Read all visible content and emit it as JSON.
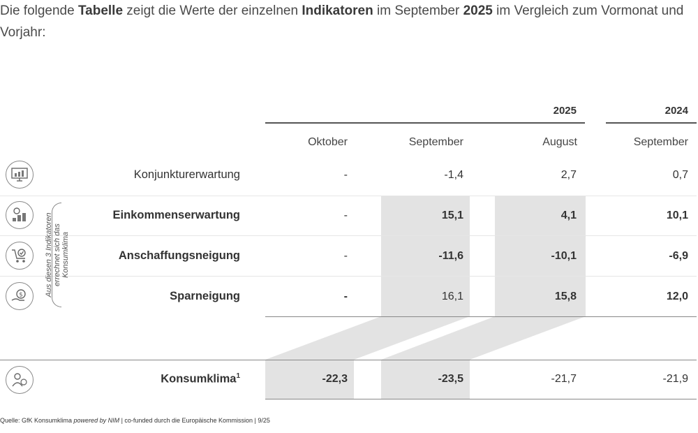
{
  "intro": {
    "part1": "Die folgende ",
    "bold1": "Tabelle",
    "part2": " zeigt die Werte der einzelnen ",
    "bold2": "Indikatoren",
    "part3": " im September ",
    "bold3": "2025",
    "part4": " im Vergleich zum Vormonat und Vorjahr:"
  },
  "table": {
    "year_2025": "2025",
    "year_2024": "2024",
    "columns": [
      "Oktober",
      "September",
      "August",
      "September"
    ],
    "rows": [
      {
        "label": "Konjunkturerwartung",
        "icon": "monitor-chart-icon",
        "values": [
          "-",
          "-1,4",
          "2,7",
          "0,7"
        ]
      },
      {
        "label": "Einkommenserwartung",
        "icon": "coins-icon",
        "values": [
          "-",
          "15,1",
          "4,1",
          "10,1"
        ]
      },
      {
        "label": "Anschaffungsneigung",
        "icon": "shopping-cart-icon",
        "values": [
          "-",
          "-11,6",
          "-10,1",
          "-6,9"
        ]
      },
      {
        "label": "Sparneigung",
        "icon": "money-bag-hand-icon",
        "values": [
          "-",
          "16,1",
          "15,8",
          "12,0"
        ]
      }
    ],
    "summary": {
      "label": "Konsumklima",
      "footnote": "1",
      "icon": "people-icon",
      "values": [
        "-22,3",
        "-23,5",
        "-21,7",
        "-21,9"
      ]
    },
    "bracket_note": "Aus diesen 3 Indikatoren errechnet sich das Konsumklima"
  },
  "source": {
    "prefix": "Quelle: GfK Konsumklima ",
    "italic": "powered by NIM",
    "suffix": " | co-funded durch die Europäische Kommission | 9/25"
  },
  "colors": {
    "shade": "#e3e3e3",
    "rule": "#555555"
  }
}
